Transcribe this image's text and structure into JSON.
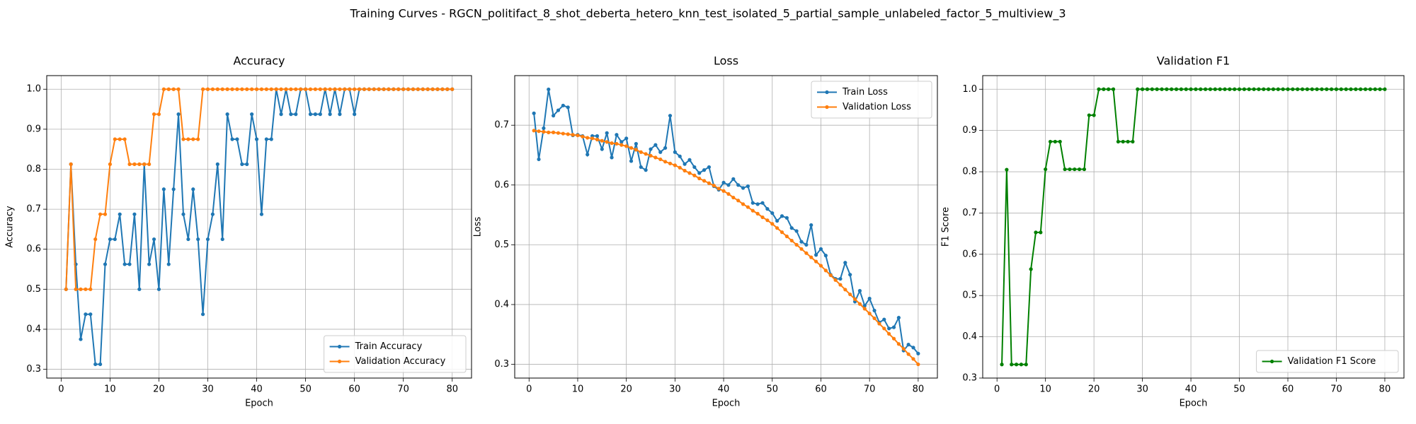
{
  "title": "Training Curves - RGCN_politifact_8_shot_deberta_hetero_knn_test_isolated_5_partial_sample_unlabeled_factor_5_multiview_3",
  "chart_data": [
    {
      "type": "line",
      "title": "Accuracy",
      "xlabel": "Epoch",
      "ylabel": "Accuracy",
      "x": [
        1,
        2,
        3,
        4,
        5,
        6,
        7,
        8,
        9,
        10,
        11,
        12,
        13,
        14,
        15,
        16,
        17,
        18,
        19,
        20,
        21,
        22,
        23,
        24,
        25,
        26,
        27,
        28,
        29,
        30,
        31,
        32,
        33,
        34,
        35,
        36,
        37,
        38,
        39,
        40,
        41,
        42,
        43,
        44,
        45,
        46,
        47,
        48,
        49,
        50,
        51,
        52,
        53,
        54,
        55,
        56,
        57,
        58,
        59,
        60,
        61,
        62,
        63,
        64,
        65,
        66,
        67,
        68,
        69,
        70,
        71,
        72,
        73,
        74,
        75,
        76,
        77,
        78,
        79,
        80
      ],
      "series": [
        {
          "name": "Train Accuracy",
          "color": "#1f77b4",
          "values": [
            0.5,
            0.8125,
            0.5625,
            0.375,
            0.4375,
            0.4375,
            0.3125,
            0.3125,
            0.5625,
            0.625,
            0.625,
            0.6875,
            0.5625,
            0.5625,
            0.6875,
            0.5,
            0.8125,
            0.5625,
            0.625,
            0.5,
            0.75,
            0.5625,
            0.75,
            0.9375,
            0.6875,
            0.625,
            0.75,
            0.625,
            0.4375,
            0.625,
            0.6875,
            0.8125,
            0.625,
            0.9375,
            0.875,
            0.875,
            0.8125,
            0.8125,
            0.9375,
            0.875,
            0.6875,
            0.875,
            0.875,
            1.0,
            0.9375,
            1.0,
            0.9375,
            0.9375,
            1.0,
            1.0,
            0.9375,
            0.9375,
            0.9375,
            1.0,
            0.9375,
            1.0,
            0.9375,
            1.0,
            1.0,
            0.9375,
            1.0,
            1.0,
            1.0,
            1.0,
            1.0,
            1.0,
            1.0,
            1.0,
            1.0,
            1.0,
            1.0,
            1.0,
            1.0,
            1.0,
            1.0,
            1.0,
            1.0,
            1.0,
            1.0,
            1.0
          ]
        },
        {
          "name": "Validation Accuracy",
          "color": "#ff7f0e",
          "values": [
            0.5,
            0.8125,
            0.5,
            0.5,
            0.5,
            0.5,
            0.625,
            0.6875,
            0.6875,
            0.8125,
            0.875,
            0.875,
            0.875,
            0.8125,
            0.8125,
            0.8125,
            0.8125,
            0.8125,
            0.9375,
            0.9375,
            1.0,
            1.0,
            1.0,
            1.0,
            0.875,
            0.875,
            0.875,
            0.875,
            1.0,
            1.0,
            1.0,
            1.0,
            1.0,
            1.0,
            1.0,
            1.0,
            1.0,
            1.0,
            1.0,
            1.0,
            1.0,
            1.0,
            1.0,
            1.0,
            1.0,
            1.0,
            1.0,
            1.0,
            1.0,
            1.0,
            1.0,
            1.0,
            1.0,
            1.0,
            1.0,
            1.0,
            1.0,
            1.0,
            1.0,
            1.0,
            1.0,
            1.0,
            1.0,
            1.0,
            1.0,
            1.0,
            1.0,
            1.0,
            1.0,
            1.0,
            1.0,
            1.0,
            1.0,
            1.0,
            1.0,
            1.0,
            1.0,
            1.0,
            1.0,
            1.0
          ]
        }
      ],
      "xlim": [
        -2.95,
        83.95
      ],
      "ylim": [
        0.278,
        1.034
      ],
      "xticks": [
        0,
        10,
        20,
        30,
        40,
        50,
        60,
        70,
        80
      ],
      "yticks": [
        0.3,
        0.4,
        0.5,
        0.6,
        0.7,
        0.8,
        0.9,
        {
          "value": 1,
          "label": "1.0"
        }
      ],
      "grid": true,
      "legend": "lower right"
    },
    {
      "type": "line",
      "title": "Loss",
      "xlabel": "Epoch",
      "ylabel": "Loss",
      "x": [
        1,
        2,
        3,
        4,
        5,
        6,
        7,
        8,
        9,
        10,
        11,
        12,
        13,
        14,
        15,
        16,
        17,
        18,
        19,
        20,
        21,
        22,
        23,
        24,
        25,
        26,
        27,
        28,
        29,
        30,
        31,
        32,
        33,
        34,
        35,
        36,
        37,
        38,
        39,
        40,
        41,
        42,
        43,
        44,
        45,
        46,
        47,
        48,
        49,
        50,
        51,
        52,
        53,
        54,
        55,
        56,
        57,
        58,
        59,
        60,
        61,
        62,
        63,
        64,
        65,
        66,
        67,
        68,
        69,
        70,
        71,
        72,
        73,
        74,
        75,
        76,
        77,
        78,
        79,
        80
      ],
      "series": [
        {
          "name": "Train Loss",
          "color": "#1f77b4",
          "values": [
            0.72,
            0.643,
            0.695,
            0.76,
            0.716,
            0.725,
            0.733,
            0.73,
            0.683,
            0.684,
            0.682,
            0.651,
            0.682,
            0.682,
            0.66,
            0.687,
            0.646,
            0.684,
            0.672,
            0.678,
            0.64,
            0.669,
            0.63,
            0.625,
            0.66,
            0.667,
            0.655,
            0.662,
            0.716,
            0.655,
            0.648,
            0.635,
            0.642,
            0.63,
            0.62,
            0.625,
            0.63,
            0.598,
            0.592,
            0.604,
            0.6,
            0.61,
            0.6,
            0.595,
            0.598,
            0.57,
            0.568,
            0.57,
            0.56,
            0.553,
            0.54,
            0.548,
            0.545,
            0.528,
            0.523,
            0.505,
            0.5,
            0.533,
            0.483,
            0.493,
            0.482,
            0.45,
            0.443,
            0.443,
            0.47,
            0.45,
            0.405,
            0.423,
            0.398,
            0.41,
            0.39,
            0.37,
            0.375,
            0.36,
            0.362,
            0.378,
            0.323,
            0.333,
            0.328,
            0.318
          ]
        },
        {
          "name": "Validation Loss",
          "color": "#ff7f0e",
          "values": [
            0.691,
            0.69,
            0.689,
            0.688,
            0.688,
            0.687,
            0.686,
            0.685,
            0.684,
            0.683,
            0.681,
            0.679,
            0.678,
            0.676,
            0.674,
            0.672,
            0.67,
            0.669,
            0.667,
            0.665,
            0.662,
            0.659,
            0.655,
            0.652,
            0.649,
            0.646,
            0.643,
            0.639,
            0.636,
            0.633,
            0.629,
            0.624,
            0.62,
            0.616,
            0.611,
            0.607,
            0.603,
            0.599,
            0.594,
            0.59,
            0.585,
            0.579,
            0.574,
            0.568,
            0.563,
            0.557,
            0.552,
            0.546,
            0.541,
            0.535,
            0.528,
            0.521,
            0.514,
            0.507,
            0.5,
            0.493,
            0.486,
            0.479,
            0.472,
            0.465,
            0.457,
            0.449,
            0.441,
            0.433,
            0.425,
            0.417,
            0.409,
            0.401,
            0.393,
            0.385,
            0.377,
            0.368,
            0.36,
            0.351,
            0.343,
            0.334,
            0.326,
            0.317,
            0.309,
            0.3
          ]
        }
      ],
      "xlim": [
        -2.95,
        83.95
      ],
      "ylim": [
        0.277,
        0.783
      ],
      "xticks": [
        0,
        10,
        20,
        30,
        40,
        50,
        60,
        70,
        80
      ],
      "yticks": [
        0.3,
        0.4,
        0.5,
        0.6,
        0.7
      ],
      "grid": true,
      "legend": "upper right"
    },
    {
      "type": "line",
      "title": "Validation F1",
      "xlabel": "Epoch",
      "ylabel": "F1 Score",
      "x": [
        1,
        2,
        3,
        4,
        5,
        6,
        7,
        8,
        9,
        10,
        11,
        12,
        13,
        14,
        15,
        16,
        17,
        18,
        19,
        20,
        21,
        22,
        23,
        24,
        25,
        26,
        27,
        28,
        29,
        30,
        31,
        32,
        33,
        34,
        35,
        36,
        37,
        38,
        39,
        40,
        41,
        42,
        43,
        44,
        45,
        46,
        47,
        48,
        49,
        50,
        51,
        52,
        53,
        54,
        55,
        56,
        57,
        58,
        59,
        60,
        61,
        62,
        63,
        64,
        65,
        66,
        67,
        68,
        69,
        70,
        71,
        72,
        73,
        74,
        75,
        76,
        77,
        78,
        79,
        80
      ],
      "series": [
        {
          "name": "Validation F1 Score",
          "color": "#008000",
          "values": [
            0.333,
            0.805,
            0.333,
            0.333,
            0.333,
            0.333,
            0.564,
            0.653,
            0.653,
            0.806,
            0.873,
            0.873,
            0.873,
            0.806,
            0.806,
            0.806,
            0.806,
            0.806,
            0.937,
            0.937,
            1.0,
            1.0,
            1.0,
            1.0,
            0.873,
            0.873,
            0.873,
            0.873,
            1.0,
            1.0,
            1.0,
            1.0,
            1.0,
            1.0,
            1.0,
            1.0,
            1.0,
            1.0,
            1.0,
            1.0,
            1.0,
            1.0,
            1.0,
            1.0,
            1.0,
            1.0,
            1.0,
            1.0,
            1.0,
            1.0,
            1.0,
            1.0,
            1.0,
            1.0,
            1.0,
            1.0,
            1.0,
            1.0,
            1.0,
            1.0,
            1.0,
            1.0,
            1.0,
            1.0,
            1.0,
            1.0,
            1.0,
            1.0,
            1.0,
            1.0,
            1.0,
            1.0,
            1.0,
            1.0,
            1.0,
            1.0,
            1.0,
            1.0,
            1.0,
            1.0
          ]
        }
      ],
      "xlim": [
        -2.95,
        83.95
      ],
      "ylim": [
        0.3,
        1.033
      ],
      "xticks": [
        0,
        10,
        20,
        30,
        40,
        50,
        60,
        70,
        80
      ],
      "yticks": [
        0.3,
        0.4,
        0.5,
        0.6,
        0.7,
        0.8,
        0.9,
        {
          "value": 1,
          "label": "1.0"
        }
      ],
      "grid": true,
      "legend": "lower right"
    }
  ]
}
